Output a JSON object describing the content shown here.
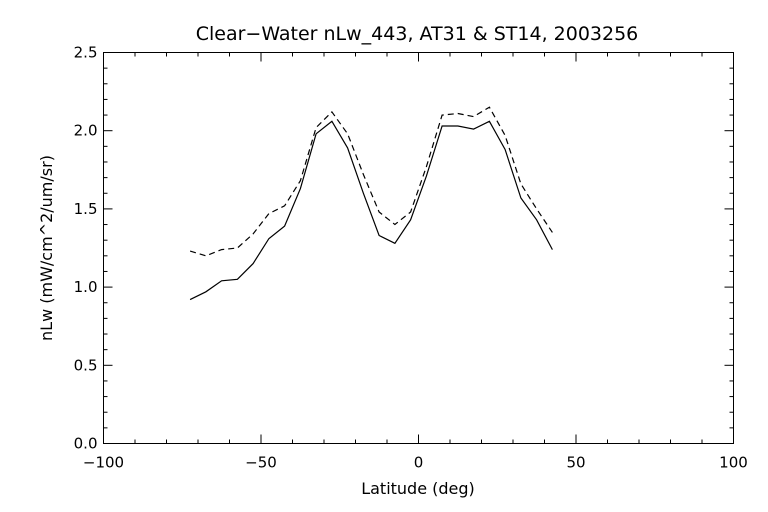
{
  "chart_data": {
    "type": "line",
    "title": "Clear−Water nLw_443, AT31 & ST14, 2003256",
    "xlabel": "Latitude (deg)",
    "ylabel": "nLw (mW/cm^2/um/sr)",
    "xlim": [
      -100,
      100
    ],
    "ylim": [
      0,
      2.5
    ],
    "x_ticks": [
      -100,
      -50,
      0,
      50,
      100
    ],
    "x_tick_labels": [
      "−100",
      "−50",
      "0",
      "50",
      "100"
    ],
    "y_ticks": [
      0,
      0.5,
      1,
      1.5,
      2,
      2.5
    ],
    "y_tick_labels": [
      "0.0",
      "0.5",
      "1.0",
      "1.5",
      "2.0",
      "2.5"
    ],
    "x_minor_step": 10,
    "y_minor_step": 0.1,
    "grid": false,
    "legend": "none",
    "series": [
      {
        "style": "solid",
        "x": [
          -72.5,
          -67.5,
          -62.5,
          -57.5,
          -52.5,
          -47.5,
          -42.5,
          -37.5,
          -32.5,
          -27.5,
          -22.5,
          -17.5,
          -12.5,
          -7.5,
          -2.5,
          2.5,
          7.5,
          12.5,
          17.5,
          22.5,
          27.5,
          32.5,
          37.5,
          42.5
        ],
        "values": [
          0.92,
          0.97,
          1.04,
          1.05,
          1.15,
          1.31,
          1.39,
          1.63,
          1.98,
          2.06,
          1.89,
          1.6,
          1.33,
          1.28,
          1.43,
          1.71,
          2.03,
          2.03,
          2.01,
          2.06,
          1.88,
          1.57,
          1.43,
          1.24
        ]
      },
      {
        "style": "dashed",
        "x": [
          -72.5,
          -67.5,
          -62.5,
          -57.5,
          -52.5,
          -47.5,
          -42.5,
          -37.5,
          -32.5,
          -27.5,
          -22.5,
          -17.5,
          -12.5,
          -7.5,
          -2.5,
          2.5,
          7.5,
          12.5,
          17.5,
          22.5,
          27.5,
          32.5,
          37.5,
          42.5
        ],
        "values": [
          1.23,
          1.2,
          1.24,
          1.25,
          1.34,
          1.47,
          1.52,
          1.68,
          2.02,
          2.12,
          1.98,
          1.72,
          1.48,
          1.4,
          1.48,
          1.77,
          2.1,
          2.11,
          2.09,
          2.15,
          1.97,
          1.66,
          1.5,
          1.35
        ]
      }
    ]
  }
}
